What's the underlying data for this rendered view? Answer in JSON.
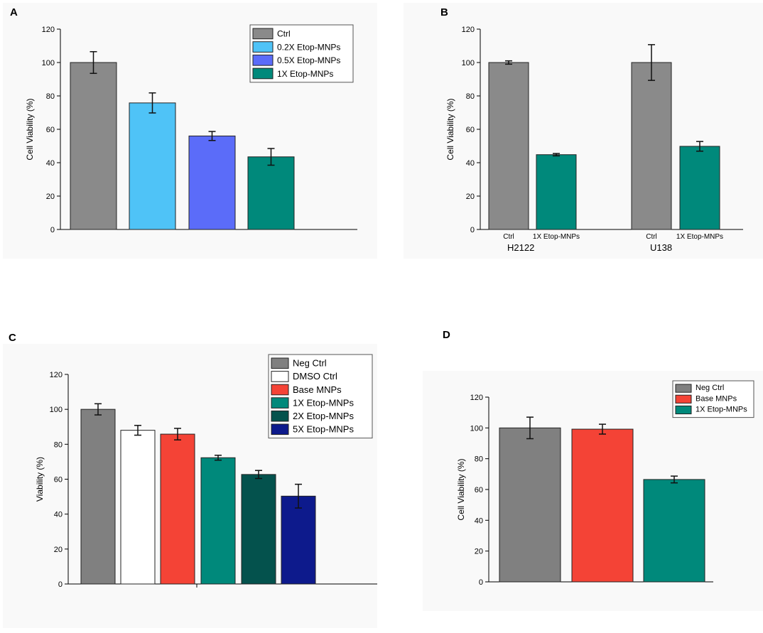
{
  "chart_data": [
    {
      "panel": "A",
      "type": "bar",
      "ylabel": "Cell Viability (%)",
      "ylim": [
        0,
        120
      ],
      "yticks": [
        0,
        20,
        40,
        60,
        80,
        100,
        120
      ],
      "legend_position": "top-right",
      "bars": [
        {
          "label": "Ctrl",
          "value": 100,
          "error": 6.5,
          "color": "#8a8a8a"
        },
        {
          "label": "0.2X Etop-MNPs",
          "value": 75.8,
          "error": 6,
          "color": "#4fc3f7"
        },
        {
          "label": "0.5X Etop-MNPs",
          "value": 56,
          "error": 2.7,
          "color": "#5b6cf9"
        },
        {
          "label": "1X Etop-MNPs",
          "value": 43.5,
          "error": 5,
          "color": "#00897b"
        }
      ]
    },
    {
      "panel": "B",
      "type": "bar",
      "ylabel": "Cell Viability (%)",
      "ylim": [
        0,
        120
      ],
      "yticks": [
        0,
        20,
        40,
        60,
        80,
        100,
        120
      ],
      "groups": [
        "H2122",
        "U138"
      ],
      "bars": [
        {
          "label": "Ctrl",
          "group": "H2122",
          "value": 100,
          "error": 1,
          "color": "#8a8a8a"
        },
        {
          "label": "1X Etop-MNPs",
          "group": "H2122",
          "value": 44.8,
          "error": 0.7,
          "color": "#00897b"
        },
        {
          "label": "Ctrl",
          "group": "U138",
          "value": 100,
          "error": 10.7,
          "color": "#8a8a8a"
        },
        {
          "label": "1X Etop-MNPs",
          "group": "U138",
          "value": 49.8,
          "error": 2.9,
          "color": "#00897b"
        }
      ]
    },
    {
      "panel": "C",
      "type": "bar",
      "ylabel": "Viability (%)",
      "ylim": [
        0,
        120
      ],
      "yticks": [
        0,
        20,
        40,
        60,
        80,
        100,
        120
      ],
      "legend_position": "top-right",
      "bars": [
        {
          "label": "Neg Ctrl",
          "value": 100,
          "error": 3.2,
          "color": "#808080"
        },
        {
          "label": "DMSO Ctrl",
          "value": 88,
          "error": 2.8,
          "color": "#ffffff"
        },
        {
          "label": "Base MNPs",
          "value": 85.8,
          "error": 3.3,
          "color": "#f44336"
        },
        {
          "label": "1X Etop-MNPs",
          "value": 72.3,
          "error": 1.4,
          "color": "#00897b"
        },
        {
          "label": "2X Etop-MNPs",
          "value": 62.7,
          "error": 2.3,
          "color": "#04524d"
        },
        {
          "label": "5X Etop-MNPs",
          "value": 50.3,
          "error": 6.8,
          "color": "#0d1a8c"
        }
      ]
    },
    {
      "panel": "D",
      "type": "bar",
      "ylabel": "Cell Viability (%)",
      "ylim": [
        0,
        120
      ],
      "yticks": [
        0,
        20,
        40,
        60,
        80,
        100,
        120
      ],
      "legend_position": "top-right",
      "bars": [
        {
          "label": "Neg Ctrl",
          "value": 100,
          "error": 7,
          "color": "#808080"
        },
        {
          "label": "Base MNPs",
          "value": 99.2,
          "error": 3.2,
          "color": "#f44336"
        },
        {
          "label": "1X Etop-MNPs",
          "value": 66.5,
          "error": 2.2,
          "color": "#00897b"
        }
      ]
    }
  ]
}
